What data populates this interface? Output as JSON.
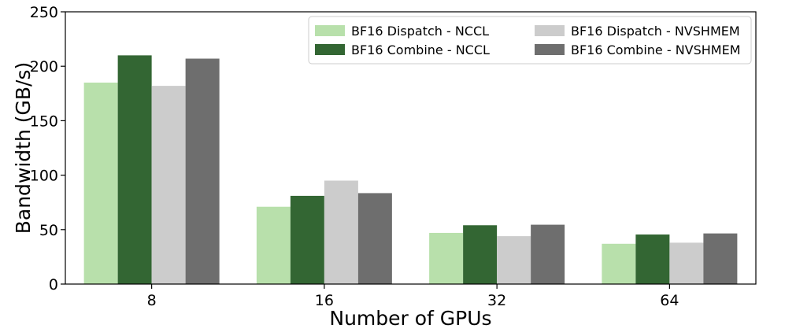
{
  "chart_data": {
    "type": "bar",
    "xlabel": "Number of GPUs",
    "ylabel": "Bandwidth (GB/s)",
    "categories": [
      "8",
      "16",
      "32",
      "64"
    ],
    "ylim": [
      0,
      250
    ],
    "yticks": [
      0,
      50,
      100,
      150,
      200,
      250
    ],
    "grid": false,
    "legend_position": "top-right",
    "series": [
      {
        "name": "BF16 Dispatch - NCCL",
        "color": "#b8e0ab",
        "values": [
          185,
          71,
          47,
          37
        ]
      },
      {
        "name": "BF16 Combine - NCCL",
        "color": "#336633",
        "values": [
          210,
          81,
          54,
          45.5
        ]
      },
      {
        "name": "BF16 Dispatch - NVSHMEM",
        "color": "#cccccc",
        "values": [
          182,
          95,
          44,
          38
        ]
      },
      {
        "name": "BF16 Combine - NVSHMEM",
        "color": "#6e6e6e",
        "values": [
          207,
          83.5,
          54.5,
          46.5
        ]
      }
    ]
  }
}
